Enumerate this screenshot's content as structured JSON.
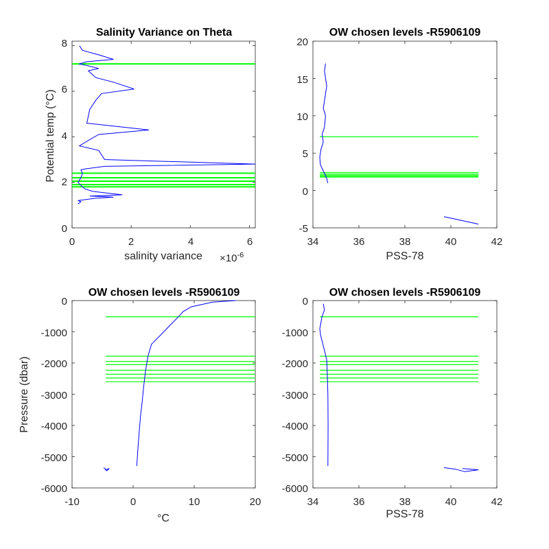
{
  "chart_data": [
    {
      "id": "sal-var-theta",
      "type": "line",
      "title": "Salinity Variance on Theta",
      "xlabel": "salinity variance",
      "x_exponent_label": "×10",
      "x_exponent_power": "-6",
      "ylabel": "Potential temp (°C)",
      "xlim": [
        0,
        6.2
      ],
      "ylim": [
        0,
        8.2
      ],
      "xticks": [
        0,
        2,
        4,
        6
      ],
      "yticks": [
        0,
        2,
        4,
        6,
        8
      ],
      "xtick_labels": [
        "0",
        "2",
        "4",
        "6"
      ],
      "ytick_labels": [
        "0",
        "2",
        "4",
        "6",
        "8"
      ],
      "grid": false,
      "chosen_levels": [
        7.2,
        2.4,
        2.2,
        2.05,
        1.9,
        1.8
      ],
      "series": [
        {
          "color": "#0000ff",
          "x": [
            0.25,
            0.35,
            0.9,
            1.4,
            0.5,
            0.25,
            0.6,
            0.9,
            0.55,
            0.8,
            1.4,
            2.1,
            1.0,
            0.8,
            0.6,
            0.5,
            2.6,
            0.9,
            0.5,
            0.25,
            0.9,
            1.1,
            6.2,
            1.1,
            0.5,
            0.3,
            0.35,
            0.3,
            0.25,
            0.2,
            0.35,
            0.45,
            0.7,
            1.7,
            0.6,
            1.4,
            0.8,
            0.2,
            0.3,
            0.2
          ],
          "y": [
            8.0,
            7.8,
            7.6,
            7.4,
            7.3,
            7.2,
            7.1,
            7.0,
            6.9,
            6.6,
            6.4,
            6.1,
            5.9,
            5.6,
            5.2,
            4.6,
            4.3,
            4.1,
            3.8,
            3.6,
            3.4,
            3.0,
            2.8,
            2.7,
            2.6,
            2.55,
            2.4,
            2.2,
            2.1,
            2.0,
            1.8,
            1.7,
            1.6,
            1.45,
            1.4,
            1.35,
            1.3,
            1.2,
            1.15,
            1.05
          ]
        }
      ]
    },
    {
      "id": "theta-vs-sal",
      "type": "line",
      "title": "OW chosen levels -R5906109",
      "xlabel": "PSS-78",
      "ylabel": "",
      "xlim": [
        34,
        42
      ],
      "ylim": [
        -5,
        20
      ],
      "xticks": [
        34,
        36,
        38,
        40,
        42
      ],
      "yticks": [
        -5,
        0,
        5,
        10,
        15,
        20
      ],
      "xtick_labels": [
        "34",
        "36",
        "38",
        "40",
        "42"
      ],
      "ytick_labels": [
        "-5",
        "0",
        "5",
        "10",
        "15",
        "20"
      ],
      "grid": false,
      "chosen_levels": [
        7.2,
        2.4,
        2.2,
        2.05,
        1.9,
        1.8
      ],
      "level_x": [
        34.3,
        41.2
      ],
      "series": [
        {
          "color": "#0000ff",
          "x": [
            34.55,
            34.5,
            34.6,
            34.5,
            34.45,
            34.55,
            34.5,
            34.4,
            34.45,
            34.35,
            34.3,
            34.32,
            34.42,
            34.52,
            34.6,
            34.65
          ],
          "y": [
            17.0,
            16.0,
            14.0,
            12.0,
            11.0,
            10.0,
            8.5,
            7.5,
            6.5,
            5.5,
            4.5,
            3.5,
            2.8,
            2.2,
            1.6,
            1.0
          ]
        },
        {
          "color": "#0000ff",
          "x": [
            39.7,
            40.3,
            41.2
          ],
          "y": [
            -3.5,
            -3.9,
            -4.5
          ]
        }
      ]
    },
    {
      "id": "pres-vs-temp",
      "type": "line",
      "title": "OW chosen levels -R5906109",
      "xlabel": "°C",
      "ylabel": "Pressure (dbar)",
      "xlim": [
        -10,
        20
      ],
      "ylim": [
        -6000,
        0
      ],
      "xticks": [
        -10,
        0,
        10,
        20
      ],
      "yticks": [
        -6000,
        -5000,
        -4000,
        -3000,
        -2000,
        -1000,
        0
      ],
      "xtick_labels": [
        "-10",
        "0",
        "10",
        "20"
      ],
      "ytick_labels": [
        "-6000",
        "-5000",
        "-4000",
        "-3000",
        "-2000",
        "-1000",
        "0"
      ],
      "grid": false,
      "chosen_levels": [
        -520,
        -1780,
        -1950,
        -2050,
        -2230,
        -2360,
        -2480,
        -2600
      ],
      "level_x": [
        -4.5,
        20
      ],
      "series": [
        {
          "color": "#0000ff",
          "x": [
            16.8,
            13.0,
            9.5,
            8.2,
            7.5,
            6.0,
            4.5,
            3.0,
            2.4,
            2.0,
            1.7,
            1.5,
            1.2,
            1.0,
            0.8,
            0.7,
            0.6
          ],
          "y": [
            0,
            -50,
            -200,
            -350,
            -500,
            -800,
            -1100,
            -1400,
            -1800,
            -2300,
            -2800,
            -3200,
            -3700,
            -4200,
            -4700,
            -5000,
            -5300
          ]
        },
        {
          "color": "#0000ff",
          "x": [
            -4.8,
            -4.3,
            -3.9,
            -4.6
          ],
          "y": [
            -5350,
            -5450,
            -5380,
            -5420
          ]
        }
      ]
    },
    {
      "id": "pres-vs-sal",
      "type": "line",
      "title": "OW chosen levels -R5906109",
      "xlabel": "PSS-78",
      "ylabel": "",
      "xlim": [
        34,
        42
      ],
      "ylim": [
        -6000,
        0
      ],
      "xticks": [
        34,
        36,
        38,
        40,
        42
      ],
      "yticks": [
        -6000,
        -5000,
        -4000,
        -3000,
        -2000,
        -1000,
        0
      ],
      "xtick_labels": [
        "34",
        "36",
        "38",
        "40",
        "42"
      ],
      "ytick_labels": [
        "-6000",
        "-5000",
        "-4000",
        "-3000",
        "-2000",
        "-1000",
        "0"
      ],
      "grid": false,
      "chosen_levels": [
        -520,
        -1780,
        -1950,
        -2050,
        -2230,
        -2360,
        -2480,
        -2600
      ],
      "level_x": [
        34.3,
        41.2
      ],
      "series": [
        {
          "color": "#0000ff",
          "x": [
            34.45,
            34.5,
            34.4,
            34.35,
            34.3,
            34.33,
            34.4,
            34.5,
            34.6,
            34.62,
            34.65,
            34.66,
            34.65
          ],
          "y": [
            -100,
            -300,
            -500,
            -700,
            -900,
            -1100,
            -1300,
            -1600,
            -1900,
            -2300,
            -3000,
            -4000,
            -5300
          ]
        },
        {
          "color": "#0000ff",
          "x": [
            39.7,
            40.2,
            40.6,
            41.2,
            40.5
          ],
          "y": [
            -5350,
            -5400,
            -5480,
            -5420,
            -5380
          ]
        }
      ]
    }
  ],
  "colors": {
    "profile": "#0000ff",
    "levels": "#00ff00",
    "axes": "#262626"
  }
}
